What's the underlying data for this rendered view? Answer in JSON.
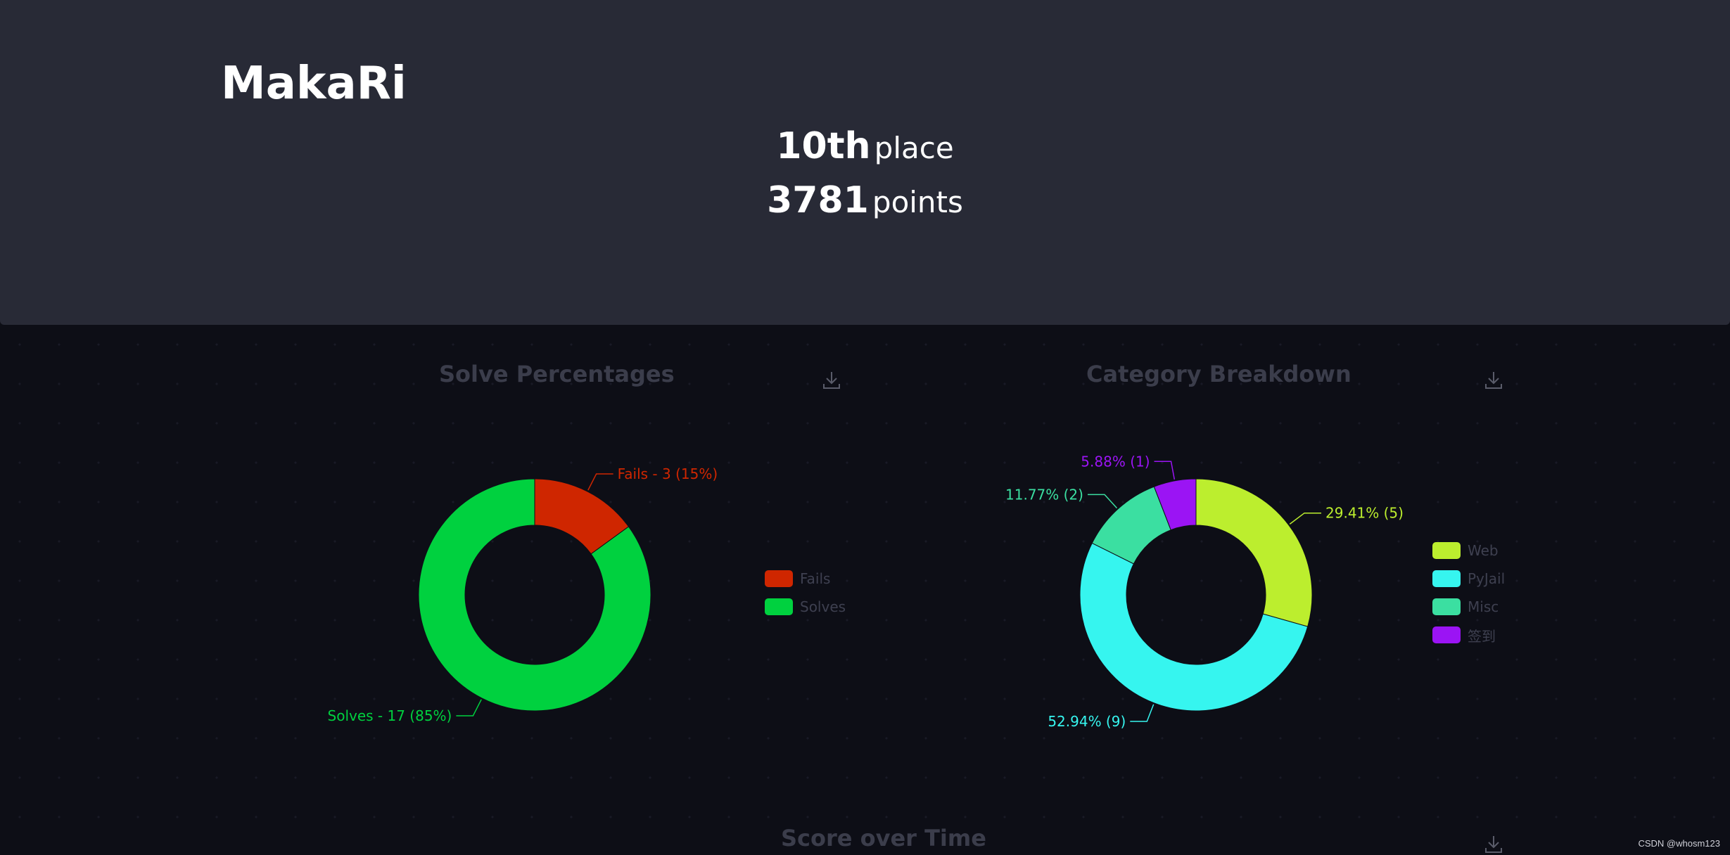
{
  "team": {
    "name": "MakaRi",
    "place_num": "10th",
    "place_unit": "place",
    "points_num": "3781",
    "points_unit": "points"
  },
  "panels": {
    "solve_title": "Solve Percentages",
    "category_title": "Category Breakdown",
    "score_title": "Score over Time"
  },
  "icons": {
    "download": "download-icon"
  },
  "watermark": "CSDN @whosm123",
  "chart_data": [
    {
      "type": "pie",
      "title": "Solve Percentages",
      "labels": [
        "Fails",
        "Solves"
      ],
      "values": [
        3,
        17
      ],
      "percent": [
        15,
        85
      ],
      "colors": [
        "#cf2600",
        "#00d13f"
      ],
      "slice_labels": [
        "Fails - 3 (15%)",
        "Solves - 17 (85%)"
      ],
      "legend": "right"
    },
    {
      "type": "pie",
      "title": "Category Breakdown",
      "labels": [
        "Web",
        "PyJail",
        "Misc",
        "签到"
      ],
      "values": [
        5,
        9,
        2,
        1
      ],
      "percent": [
        29.41,
        52.94,
        11.77,
        5.88
      ],
      "colors": [
        "#bcee2e",
        "#36f5ef",
        "#3bdfa1",
        "#9b14f4"
      ],
      "slice_labels": [
        "29.41% (5)",
        "52.94% (9)",
        "11.77% (2)",
        "5.88% (1)"
      ],
      "legend": "right"
    }
  ]
}
